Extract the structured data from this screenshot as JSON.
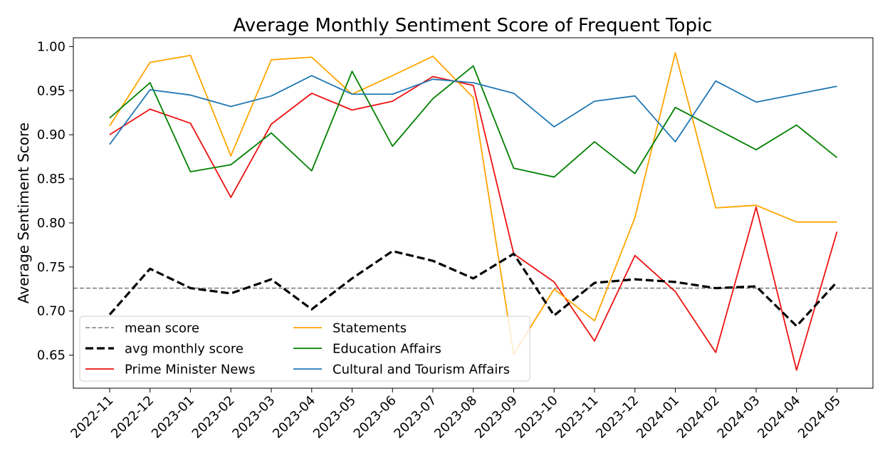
{
  "chart_data": {
    "type": "line",
    "title": "Average Monthly Sentiment Score of Frequent Topic",
    "xlabel": "",
    "ylabel": "Average Sentiment Score",
    "x": [
      "2022-11",
      "2022-12",
      "2023-01",
      "2023-02",
      "2023-03",
      "2023-04",
      "2023-05",
      "2023-06",
      "2023-07",
      "2023-08",
      "2023-09",
      "2023-10",
      "2023-11",
      "2023-12",
      "2024-01",
      "2024-02",
      "2024-03",
      "2024-04",
      "2024-05"
    ],
    "ylim": [
      0.6125,
      1.01
    ],
    "yticks": [
      0.65,
      0.7,
      0.75,
      0.8,
      0.85,
      0.9,
      0.95,
      1.0
    ],
    "ytick_labels": [
      "0.65",
      "0.70",
      "0.75",
      "0.80",
      "0.85",
      "0.90",
      "0.95",
      "1.00"
    ],
    "grid": false,
    "legend_placement": "lower-left",
    "mean_score": {
      "name": "mean score",
      "value": 0.726,
      "color": "#808080",
      "style": "dashed"
    },
    "series": [
      {
        "name": "avg monthly score",
        "color": "#000000",
        "style": "dashed-thick",
        "values": [
          0.696,
          0.748,
          0.726,
          0.72,
          0.736,
          0.702,
          0.737,
          0.768,
          0.757,
          0.737,
          0.765,
          0.695,
          0.732,
          0.736,
          0.733,
          0.726,
          0.728,
          0.683,
          0.733
        ]
      },
      {
        "name": "Prime Minister News",
        "color": "#ee1111",
        "style": "solid",
        "values": [
          0.9,
          0.929,
          0.913,
          0.829,
          0.912,
          0.947,
          0.928,
          0.938,
          0.966,
          0.956,
          0.765,
          0.733,
          0.666,
          0.763,
          0.722,
          0.653,
          0.818,
          0.633,
          0.79
        ]
      },
      {
        "name": "Statements",
        "color": "#ffa500",
        "style": "solid",
        "values": [
          0.91,
          0.982,
          0.99,
          0.876,
          0.985,
          0.988,
          0.946,
          0.967,
          0.989,
          0.942,
          0.651,
          0.725,
          0.689,
          0.806,
          0.993,
          0.817,
          0.82,
          0.801,
          0.801
        ]
      },
      {
        "name": "Education Affairs",
        "color": "#008000",
        "style": "solid",
        "values": [
          0.919,
          0.959,
          0.858,
          0.866,
          0.902,
          0.859,
          0.972,
          0.887,
          0.941,
          0.978,
          0.862,
          0.852,
          0.892,
          0.856,
          0.931,
          0.907,
          0.883,
          0.911,
          0.874
        ]
      },
      {
        "name": "Cultural and Tourism Affairs",
        "color": "#1f77b4",
        "style": "solid",
        "values": [
          0.889,
          0.951,
          0.945,
          0.932,
          0.944,
          0.967,
          0.946,
          0.946,
          0.963,
          0.959,
          0.947,
          0.909,
          0.938,
          0.944,
          0.892,
          0.961,
          0.937,
          0.946,
          0.955
        ]
      }
    ]
  }
}
